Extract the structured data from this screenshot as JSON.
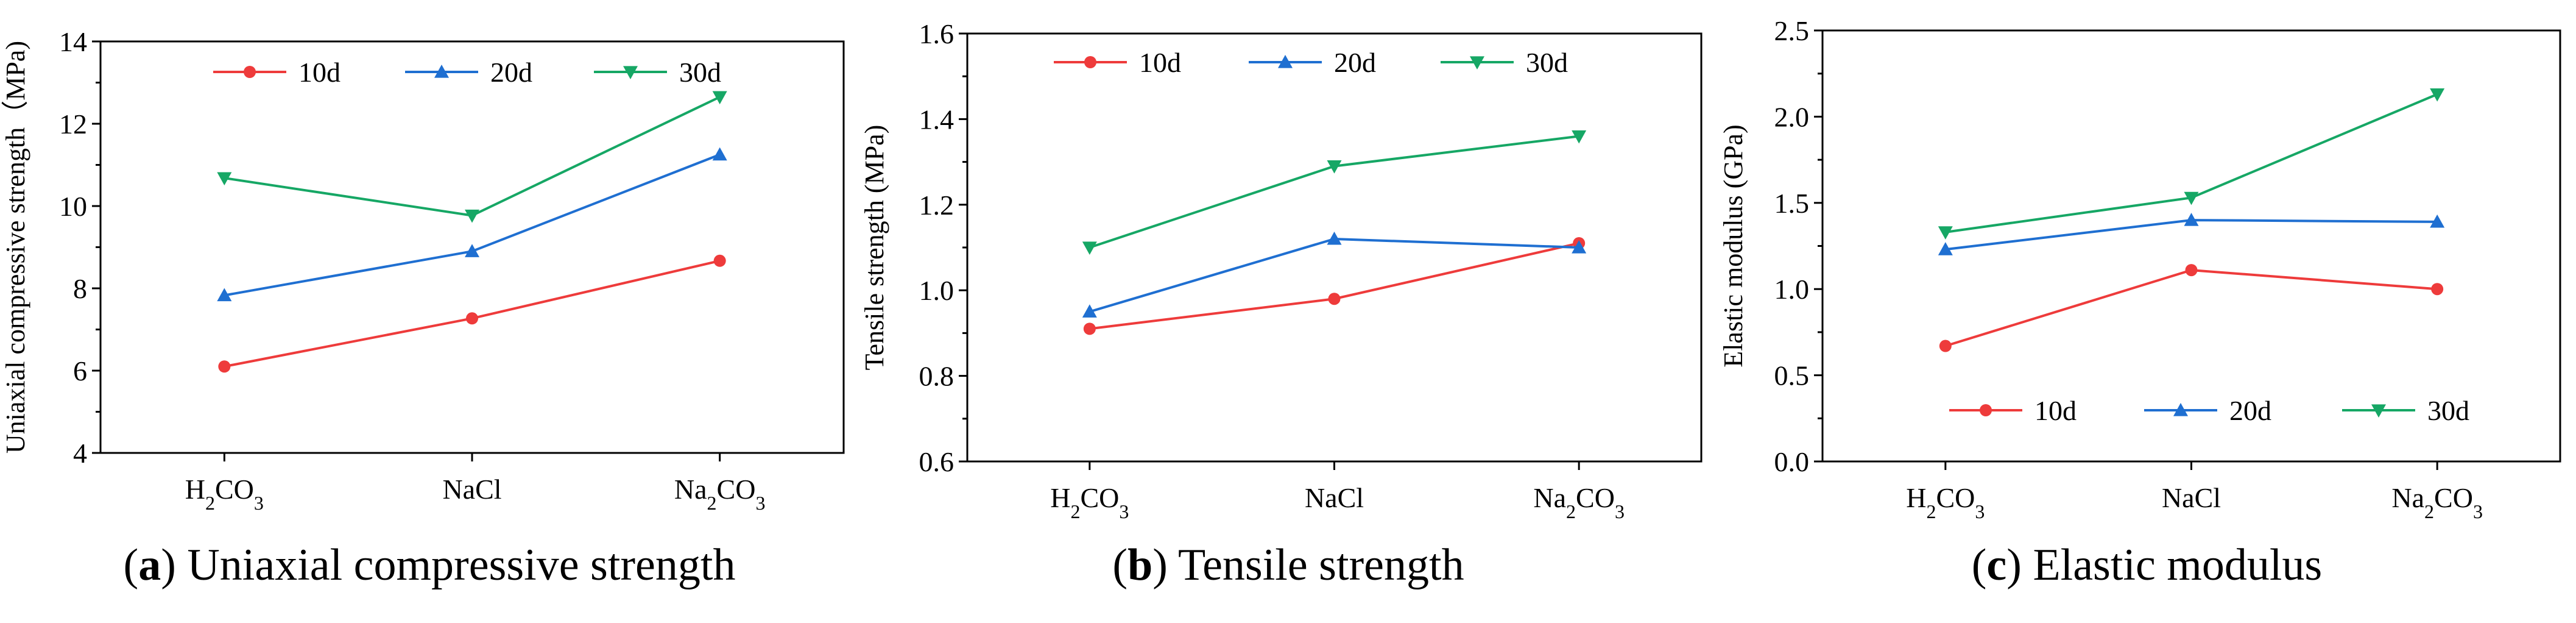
{
  "chart_data": [
    {
      "type": "line",
      "panel": "a",
      "caption": "Uniaxial compressive strength",
      "categories": [
        "H2CO3",
        "NaCl",
        "Na2CO3"
      ],
      "ylabel": "Uniaxial compressive strength（MPa)",
      "xlabel": "",
      "ylim": [
        4,
        14
      ],
      "yticks": [
        "4",
        "6",
        "8",
        "10",
        "12",
        "14"
      ],
      "legend_position": "top",
      "series": [
        {
          "name": "10d",
          "values": [
            6.1,
            7.27,
            8.67
          ],
          "color": "#ee3b3b",
          "marker": "circle"
        },
        {
          "name": "20d",
          "values": [
            7.83,
            8.9,
            11.25
          ],
          "color": "#1f6fd1",
          "marker": "triangle-up"
        },
        {
          "name": "30d",
          "values": [
            10.68,
            9.77,
            12.65
          ],
          "color": "#16a765",
          "marker": "triangle-down"
        }
      ]
    },
    {
      "type": "line",
      "panel": "b",
      "caption": "Tensile strength",
      "categories": [
        "H2CO3",
        "NaCl",
        "Na2CO3"
      ],
      "ylabel": "Tensile strength (MPa)",
      "xlabel": "",
      "ylim": [
        0.6,
        1.6
      ],
      "yticks": [
        "0.6",
        "0.8",
        "1.0",
        "1.2",
        "1.4",
        "1.6"
      ],
      "legend_position": "top",
      "series": [
        {
          "name": "10d",
          "values": [
            0.91,
            0.98,
            1.11
          ],
          "color": "#ee3b3b",
          "marker": "circle"
        },
        {
          "name": "20d",
          "values": [
            0.95,
            1.12,
            1.1
          ],
          "color": "#1f6fd1",
          "marker": "triangle-up"
        },
        {
          "name": "30d",
          "values": [
            1.1,
            1.29,
            1.36
          ],
          "color": "#16a765",
          "marker": "triangle-down"
        }
      ]
    },
    {
      "type": "line",
      "panel": "c",
      "caption": "Elastic modulus",
      "categories": [
        "H2CO3",
        "NaCl",
        "Na2CO3"
      ],
      "ylabel": "Elastic modulus (GPa)",
      "xlabel": "",
      "ylim": [
        0.0,
        2.5
      ],
      "yticks": [
        "0.0",
        "0.5",
        "1.0",
        "1.5",
        "2.0",
        "2.5"
      ],
      "legend_position": "bottom",
      "series": [
        {
          "name": "10d",
          "values": [
            0.67,
            1.11,
            1.0
          ],
          "color": "#ee3b3b",
          "marker": "circle"
        },
        {
          "name": "20d",
          "values": [
            1.23,
            1.4,
            1.39
          ],
          "color": "#1f6fd1",
          "marker": "triangle-up"
        },
        {
          "name": "30d",
          "values": [
            1.33,
            1.53,
            2.13
          ],
          "color": "#16a765",
          "marker": "triangle-down"
        }
      ]
    }
  ]
}
